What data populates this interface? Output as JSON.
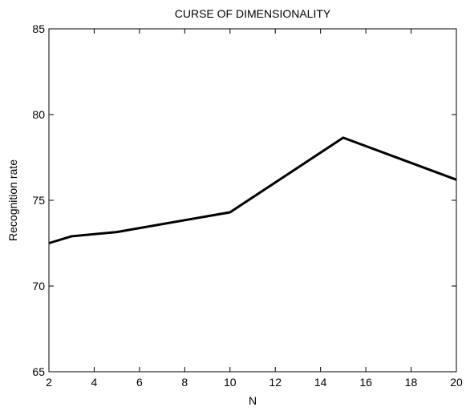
{
  "chart_data": {
    "type": "line",
    "title": "CURSE OF DIMENSIONALITY",
    "x_label": "N",
    "y_label": "Recognition rate",
    "x": [
      2,
      3,
      5,
      10,
      15,
      20
    ],
    "series": [
      {
        "color": "#000000",
        "values": [
          72.5,
          72.9,
          73.15,
          74.3,
          78.65,
          76.2
        ]
      }
    ],
    "xlim": [
      2,
      20
    ],
    "xticks": [
      2,
      4,
      6,
      8,
      10,
      12,
      14,
      16,
      18,
      20
    ],
    "ylim": [
      65,
      85
    ],
    "yticks": [
      65,
      70,
      75,
      80,
      85
    ],
    "grid": false
  }
}
